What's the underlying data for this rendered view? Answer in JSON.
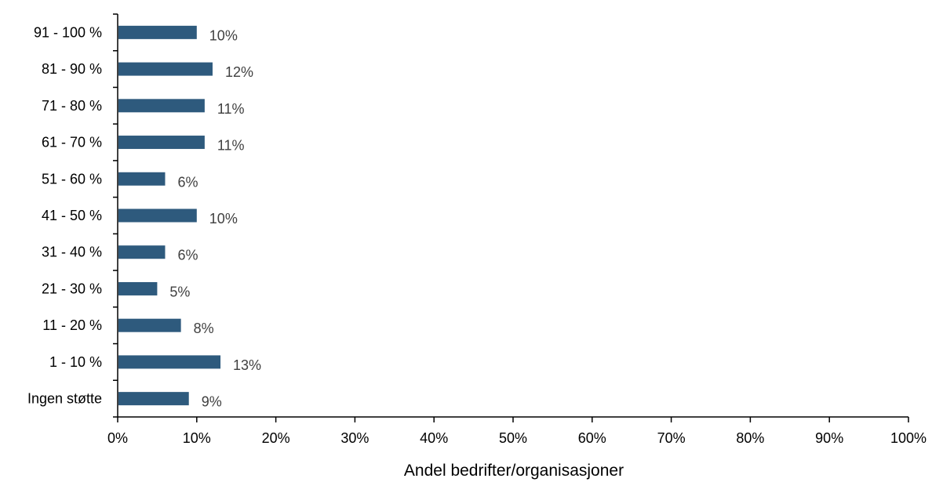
{
  "chart_data": {
    "type": "bar",
    "orientation": "horizontal",
    "categories": [
      "Ingen støtte",
      "1 - 10 %",
      "11 - 20 %",
      "21 - 30 %",
      "31 - 40 %",
      "41 - 50 %",
      "51 - 60 %",
      "61 - 70 %",
      "71 - 80 %",
      "81 - 90 %",
      "91 - 100 %"
    ],
    "values": [
      9,
      13,
      8,
      5,
      6,
      10,
      6,
      11,
      11,
      12,
      10
    ],
    "value_labels": [
      "9%",
      "13%",
      "8%",
      "5%",
      "6%",
      "10%",
      "6%",
      "11%",
      "11%",
      "12%",
      "10%"
    ],
    "title": "",
    "xlabel": "Andel bedrifter/organisasjoner",
    "ylabel": "",
    "xlim": [
      0,
      100
    ],
    "xticks": [
      0,
      10,
      20,
      30,
      40,
      50,
      60,
      70,
      80,
      90,
      100
    ],
    "xtick_labels": [
      "0%",
      "10%",
      "20%",
      "30%",
      "40%",
      "50%",
      "60%",
      "70%",
      "80%",
      "90%",
      "100%"
    ],
    "grid": false,
    "legend": "none",
    "colors": {
      "bar": "#2E5A7D",
      "axis": "#000000",
      "data_label": "#404040"
    }
  }
}
